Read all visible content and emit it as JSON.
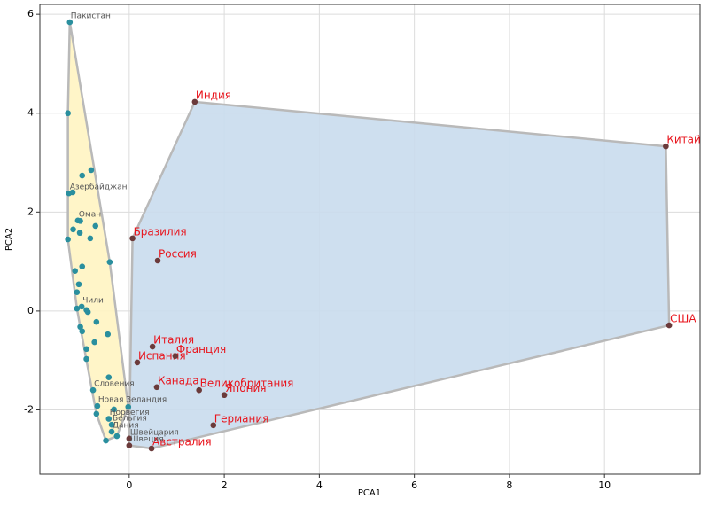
{
  "chart_data": {
    "type": "scatter",
    "x_label": "PCA1",
    "y_label": "PCA2",
    "xlim": [
      -1.88,
      12.01
    ],
    "ylim": [
      -3.3,
      6.2
    ],
    "xticks": [
      0,
      2,
      4,
      6,
      8,
      10
    ],
    "yticks": [
      -2,
      0,
      2,
      4,
      6
    ],
    "grid": true,
    "hulls": [
      {
        "fill": "#fff4c2",
        "stroke": "#b9b9b9"
      },
      {
        "fill": "#c9dced",
        "stroke": "#b9b9b9"
      }
    ],
    "series": [
      {
        "hull": 0,
        "color": "#2a8f9e",
        "label_color": "#555555",
        "label_size": 9,
        "x": [
          -1.25,
          -1.29,
          -0.99,
          -0.8,
          -1.27,
          -1.19,
          -1.08,
          -1.03,
          -0.71,
          -1.18,
          -1.04,
          -1.29,
          -0.82,
          -0.41,
          -0.99,
          -1.14,
          -1.06,
          -1.1,
          -1.0,
          -1.1,
          -0.9,
          -0.87,
          -0.69,
          -1.03,
          -0.99,
          -0.45,
          -0.73,
          -0.9,
          -0.9,
          -0.43,
          -0.76,
          -0.67,
          -0.69,
          -0.32,
          -0.02,
          -0.43,
          -0.37,
          -0.37,
          -0.26,
          -0.49
        ],
        "y": [
          5.84,
          4.0,
          2.74,
          2.85,
          2.38,
          2.4,
          1.83,
          1.82,
          1.72,
          1.65,
          1.58,
          1.45,
          1.47,
          0.99,
          0.9,
          0.81,
          0.54,
          0.38,
          0.09,
          0.05,
          0.02,
          -0.02,
          -0.22,
          -0.32,
          -0.41,
          -0.47,
          -0.63,
          -0.77,
          -0.97,
          -1.34,
          -1.6,
          -1.92,
          -2.08,
          -1.99,
          -1.94,
          -2.18,
          -2.3,
          -2.44,
          -2.53,
          -2.62
        ],
        "labels": [
          "Пакистан",
          null,
          null,
          null,
          "Азербайджан",
          null,
          "Оман",
          null,
          null,
          null,
          null,
          null,
          null,
          null,
          null,
          null,
          null,
          null,
          "Чили",
          null,
          null,
          null,
          null,
          null,
          null,
          null,
          null,
          null,
          null,
          null,
          "Словения",
          "Новая Зеландия",
          null,
          null,
          null,
          "Норвегия",
          "Бельгия",
          "Дания",
          null,
          null
        ]
      },
      {
        "hull": 1,
        "color": "#6b3a3a",
        "label_color": "#e8141c",
        "label_size": 12,
        "x": [
          1.38,
          11.29,
          11.36,
          0.07,
          0.6,
          0.49,
          0.17,
          0.97,
          0.58,
          1.47,
          2.0,
          1.77,
          0.47
        ],
        "y": [
          4.23,
          3.33,
          -0.29,
          1.47,
          1.02,
          -0.72,
          -1.04,
          -0.91,
          -1.54,
          -1.6,
          -1.7,
          -2.31,
          -2.78
        ],
        "labels": [
          "Индия",
          "Китай",
          "США",
          "Бразилия",
          "Россия",
          "Италия",
          "Испания",
          "Франция",
          "Канада",
          "Великобритания",
          "Япония",
          "Германия",
          "Австралия"
        ]
      },
      {
        "hull": 1,
        "color": "#6b3a3a",
        "label_color": "#555555",
        "label_size": 9,
        "x": [
          0.0,
          0.0
        ],
        "y": [
          -2.58,
          -2.72
        ],
        "labels": [
          "Швейцария",
          "Швеция"
        ]
      }
    ]
  }
}
